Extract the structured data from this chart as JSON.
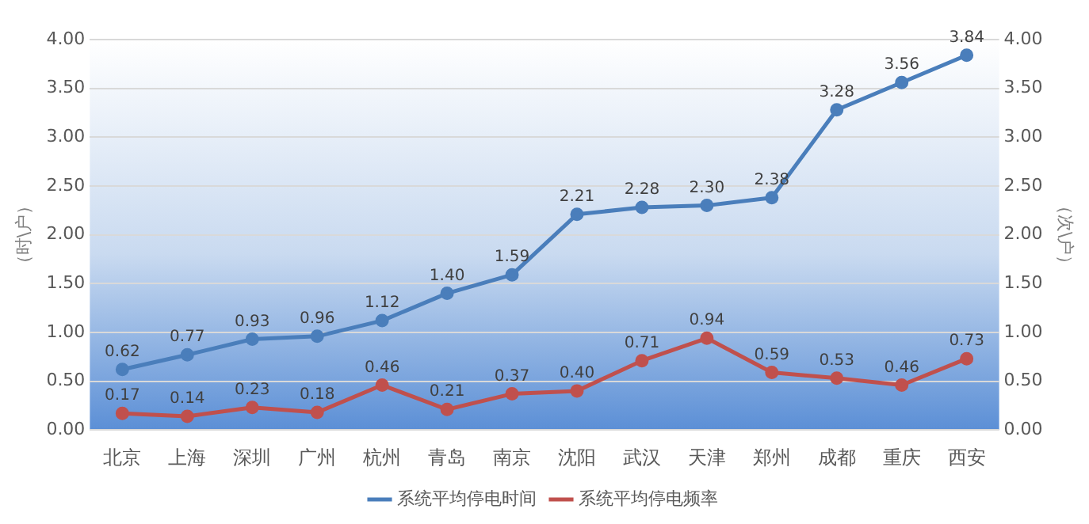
{
  "chart_data": {
    "type": "line",
    "ylabel": "（时\\户）",
    "y2label": "（次\\户）",
    "categories": [
      "北京",
      "上海",
      "深圳",
      "广州",
      "杭州",
      "青岛",
      "南京",
      "沈阳",
      "武汉",
      "天津",
      "郑州",
      "成都",
      "重庆",
      "西安"
    ],
    "series": [
      {
        "name": "系统平均停电时间",
        "color": "#4a7ebb",
        "values": [
          0.62,
          0.77,
          0.93,
          0.96,
          1.12,
          1.4,
          1.59,
          2.21,
          2.28,
          2.3,
          2.38,
          3.28,
          3.56,
          3.84
        ],
        "value_labels": [
          "0.62",
          "0.77",
          "0.93",
          "0.96",
          "1.12",
          "1.40",
          "1.59",
          "2.21",
          "2.28",
          "2.30",
          "2.38",
          "3.28",
          "3.56",
          "3.84"
        ]
      },
      {
        "name": "系统平均停电频率",
        "color": "#c0504d",
        "axis": "y2",
        "values": [
          0.17,
          0.14,
          0.23,
          0.18,
          0.46,
          0.21,
          0.37,
          0.4,
          0.71,
          0.94,
          0.59,
          0.53,
          0.46,
          0.73
        ],
        "value_labels": [
          "0.17",
          "0.14",
          "0.23",
          "0.18",
          "0.46",
          "0.21",
          "0.37",
          "0.40",
          "0.71",
          "0.94",
          "0.59",
          "0.53",
          "0.46",
          "0.73"
        ]
      }
    ],
    "ylim": [
      0,
      4
    ],
    "yticks": [
      {
        "value": 0,
        "label": "0.00"
      },
      {
        "value": 0.5,
        "label": "0.50"
      },
      {
        "value": 1,
        "label": "1.00"
      },
      {
        "value": 1.5,
        "label": "1.50"
      },
      {
        "value": 2,
        "label": "2.00"
      },
      {
        "value": 2.5,
        "label": "2.50"
      },
      {
        "value": 3,
        "label": "3.00"
      },
      {
        "value": 3.5,
        "label": "3.50"
      },
      {
        "value": 4,
        "label": "4.00"
      }
    ],
    "y2lim": [
      0,
      4
    ],
    "y2ticks": [
      {
        "value": 0,
        "label": "0.00"
      },
      {
        "value": 0.5,
        "label": "0.50"
      },
      {
        "value": 1,
        "label": "1.00"
      },
      {
        "value": 1.5,
        "label": "1.50"
      },
      {
        "value": 2,
        "label": "2.00"
      },
      {
        "value": 2.5,
        "label": "2.50"
      },
      {
        "value": 3,
        "label": "3.00"
      },
      {
        "value": 3.5,
        "label": "3.50"
      },
      {
        "value": 4,
        "label": "4.00"
      }
    ],
    "grid": "y",
    "legend": "bottom",
    "marker": "circle",
    "line_style": "solid"
  }
}
